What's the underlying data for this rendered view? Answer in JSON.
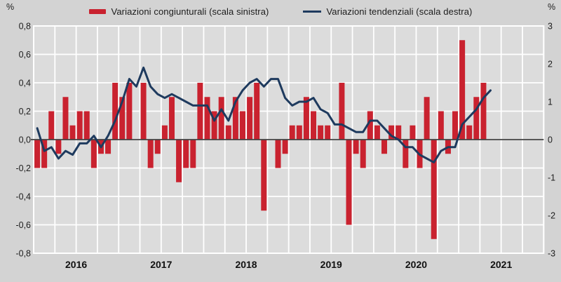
{
  "figure": {
    "unit_left": "%",
    "unit_right": "%"
  },
  "chart_data": {
    "type": "bar",
    "subtype": "bar-and-line-dual-axis",
    "title": "",
    "x_monthly_start": "2016-01",
    "x_monthly_end": "2021-05",
    "months_per_year": 12,
    "grid_interval_months": 3,
    "years": [
      "2016",
      "2017",
      "2018",
      "2019",
      "2020",
      "2021"
    ],
    "left_axis": {
      "min": -0.8,
      "max": 0.8,
      "step": 0.2,
      "labels": [
        "0,8",
        "0,6",
        "0,4",
        "0,2",
        "0,0",
        "-0,2",
        "-0,4",
        "-0,6",
        "-0,8"
      ]
    },
    "right_axis": {
      "min": -3,
      "max": 3,
      "step": 1,
      "labels": [
        "3",
        "2",
        "1",
        "0",
        "-1",
        "-2",
        "-3"
      ]
    },
    "grid": true,
    "legend_position": "top",
    "series": [
      {
        "name": "Variazioni congiunturali (scala sinistra)",
        "type": "bar",
        "axis": "left",
        "color": "#c9222f",
        "values": [
          -0.2,
          -0.2,
          0.2,
          -0.1,
          0.3,
          0.1,
          0.2,
          0.2,
          -0.2,
          -0.1,
          -0.1,
          0.4,
          0.3,
          0.4,
          0.0,
          0.4,
          -0.2,
          -0.1,
          0.1,
          0.3,
          -0.3,
          -0.2,
          -0.2,
          0.4,
          0.3,
          0.2,
          0.3,
          0.1,
          0.3,
          0.2,
          0.3,
          0.4,
          -0.5,
          0.0,
          -0.2,
          -0.1,
          0.1,
          0.1,
          0.3,
          0.2,
          0.1,
          0.1,
          0.0,
          0.4,
          -0.6,
          -0.1,
          -0.2,
          0.2,
          0.1,
          -0.1,
          0.1,
          0.1,
          -0.2,
          0.1,
          -0.2,
          0.3,
          -0.7,
          0.2,
          -0.1,
          0.2,
          0.7,
          0.1,
          0.3,
          0.4,
          0.0
        ]
      },
      {
        "name": "Variazioni tendenziali (scala destra)",
        "type": "line",
        "axis": "right",
        "color": "#1e3a5e",
        "values": [
          0.3,
          -0.3,
          -0.2,
          -0.5,
          -0.3,
          -0.4,
          -0.1,
          -0.1,
          0.1,
          -0.2,
          0.1,
          0.5,
          1.0,
          1.6,
          1.4,
          1.9,
          1.4,
          1.2,
          1.1,
          1.2,
          1.1,
          1.0,
          0.9,
          0.9,
          0.9,
          0.5,
          0.8,
          0.5,
          1.0,
          1.3,
          1.5,
          1.6,
          1.4,
          1.6,
          1.6,
          1.1,
          0.9,
          1.0,
          1.0,
          1.1,
          0.8,
          0.7,
          0.4,
          0.4,
          0.3,
          0.2,
          0.2,
          0.5,
          0.5,
          0.3,
          0.1,
          0.0,
          -0.2,
          -0.2,
          -0.4,
          -0.5,
          -0.6,
          -0.3,
          -0.2,
          -0.2,
          0.4,
          0.6,
          0.8,
          1.1,
          1.3
        ]
      }
    ],
    "colors": {
      "background": "#d3d3d3",
      "plot_background": "#dcdcdc",
      "gridline": "#ffffff",
      "zero_line": "#404040",
      "text": "#1c1c1c"
    }
  }
}
